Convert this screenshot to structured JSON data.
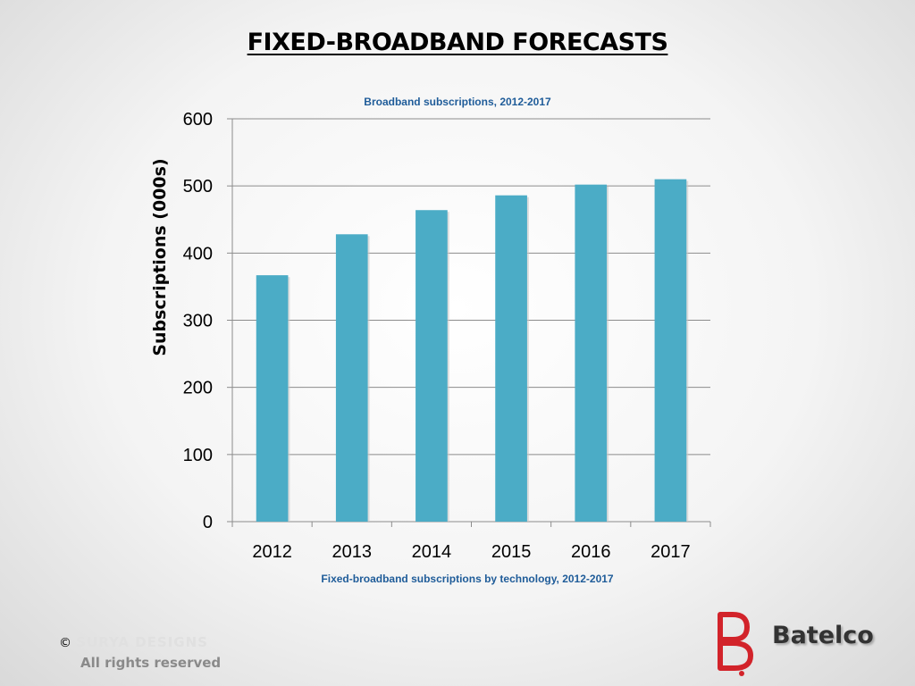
{
  "slide": {
    "title": "FIXED-BROADBAND FORECASTS"
  },
  "chart_data": {
    "type": "bar",
    "title": "Broadband subscriptions, 2012-2017",
    "caption": "Fixed-broadband subscriptions by technology, 2012-2017",
    "ylabel": "Subscriptions (000s)",
    "xlabel": "",
    "categories": [
      "2012",
      "2013",
      "2014",
      "2015",
      "2016",
      "2017"
    ],
    "values": [
      367,
      428,
      464,
      486,
      502,
      510
    ],
    "ylim": [
      0,
      600
    ],
    "yticks": [
      0,
      100,
      200,
      300,
      400,
      500,
      600
    ],
    "grid": true,
    "bar_color": "#4bacc6",
    "title_color": "#1f5c99"
  },
  "footer": {
    "copyright_symbol": "©",
    "brand": "SURYA DESIGNS",
    "rights": "All rights reserved"
  },
  "logo": {
    "text": "Batelco",
    "color": "#d2232a"
  }
}
